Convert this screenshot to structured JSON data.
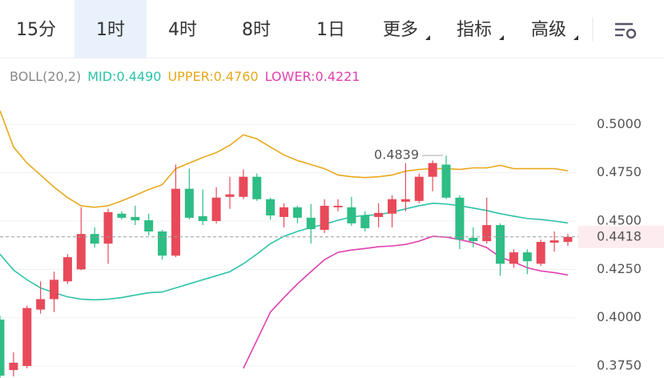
{
  "ui": {
    "tabs": [
      {
        "text": "15分",
        "selected": false
      },
      {
        "text": "1时",
        "selected": true
      },
      {
        "text": "4时",
        "selected": false
      },
      {
        "text": "8时",
        "selected": false
      },
      {
        "text": "1日",
        "selected": false
      },
      {
        "text": "更多",
        "selected": false
      },
      {
        "text": "指标",
        "selected": false
      },
      {
        "text": "高级",
        "selected": false
      }
    ]
  },
  "chart_data": {
    "type": "candlestick",
    "indicator": "BOLL(20,2)",
    "up_color": "#e84a5a",
    "down_color": "#2ebd85",
    "open": [
      0.399,
      0.3729,
      0.375,
      0.4042,
      0.4096,
      0.4188,
      0.425,
      0.4433,
      0.4383,
      0.4538,
      0.4521,
      0.4504,
      0.4446,
      0.4321,
      0.4667,
      0.4525,
      0.45,
      0.4625,
      0.4625,
      0.4729,
      0.4613,
      0.4521,
      0.4571,
      0.4517,
      0.4454,
      0.4571,
      0.4571,
      0.4529,
      0.4521,
      0.4538,
      0.46,
      0.4604,
      0.4729,
      0.4792,
      0.4621,
      0.4413,
      0.4396,
      0.4479,
      0.4279,
      0.4338,
      0.4279,
      0.4388,
      0.4392
    ],
    "high": [
      0.401,
      0.3821,
      0.4062,
      0.4188,
      0.4238,
      0.4329,
      0.4571,
      0.4467,
      0.4563,
      0.455,
      0.4579,
      0.4538,
      0.4454,
      0.4792,
      0.4771,
      0.4663,
      0.4675,
      0.4729,
      0.4767,
      0.4746,
      0.4621,
      0.4592,
      0.4579,
      0.4588,
      0.4613,
      0.4613,
      0.4625,
      0.455,
      0.4592,
      0.4633,
      0.48,
      0.4746,
      0.4813,
      0.4839,
      0.4633,
      0.4467,
      0.4621,
      0.4488,
      0.4354,
      0.4354,
      0.4404,
      0.4446,
      0.4433
    ],
    "low": [
      0.368,
      0.3696,
      0.3738,
      0.4021,
      0.4029,
      0.4175,
      0.4246,
      0.4363,
      0.4279,
      0.4508,
      0.4479,
      0.4425,
      0.43,
      0.4313,
      0.4508,
      0.4479,
      0.4488,
      0.4563,
      0.4613,
      0.4604,
      0.4508,
      0.4467,
      0.4488,
      0.4383,
      0.4438,
      0.455,
      0.4475,
      0.4446,
      0.4467,
      0.4467,
      0.455,
      0.4592,
      0.4654,
      0.4613,
      0.4354,
      0.4363,
      0.4383,
      0.4217,
      0.4258,
      0.4225,
      0.4267,
      0.4342,
      0.4371
    ],
    "close": [
      0.37,
      0.3767,
      0.405,
      0.4096,
      0.4196,
      0.4313,
      0.4433,
      0.4383,
      0.4546,
      0.4517,
      0.4504,
      0.4446,
      0.4321,
      0.4667,
      0.4517,
      0.45,
      0.4621,
      0.4638,
      0.4729,
      0.4613,
      0.4529,
      0.4571,
      0.4517,
      0.4458,
      0.4579,
      0.4579,
      0.4488,
      0.4463,
      0.4542,
      0.4613,
      0.4613,
      0.4729,
      0.48,
      0.4621,
      0.4404,
      0.4396,
      0.4479,
      0.4279,
      0.4338,
      0.4292,
      0.4392,
      0.44,
      0.4418
    ],
    "bands": [
      {
        "legend": "MID:0.4490",
        "color": "#2cc3a8",
        "values": [
          0.4329,
          0.4246,
          0.4196,
          0.4154,
          0.4129,
          0.4108,
          0.4096,
          0.4092,
          0.4096,
          0.4104,
          0.4117,
          0.4129,
          0.4133,
          0.4154,
          0.4175,
          0.4196,
          0.4217,
          0.4238,
          0.4279,
          0.4329,
          0.4383,
          0.4421,
          0.4446,
          0.4467,
          0.4483,
          0.4504,
          0.4521,
          0.4529,
          0.4533,
          0.4546,
          0.4563,
          0.4579,
          0.4592,
          0.4588,
          0.4579,
          0.4567,
          0.4554,
          0.4538,
          0.4525,
          0.4513,
          0.4508,
          0.45,
          0.449
        ]
      },
      {
        "legend": "UPPER:0.4760",
        "color": "#e8a91c",
        "values": [
          0.5071,
          0.4883,
          0.48,
          0.4738,
          0.4675,
          0.4621,
          0.4579,
          0.4571,
          0.4579,
          0.4604,
          0.4633,
          0.4663,
          0.4688,
          0.4771,
          0.48,
          0.4829,
          0.4854,
          0.4892,
          0.4946,
          0.4925,
          0.4883,
          0.4842,
          0.4813,
          0.4792,
          0.4771,
          0.4738,
          0.4729,
          0.4725,
          0.4729,
          0.4738,
          0.4758,
          0.4767,
          0.4771,
          0.4771,
          0.4767,
          0.4775,
          0.4775,
          0.4788,
          0.4771,
          0.4771,
          0.4771,
          0.4771,
          0.476
        ]
      },
      {
        "legend": "LOWER:0.4221",
        "color": "#e040b0",
        "values": [
          null,
          null,
          null,
          null,
          null,
          null,
          null,
          null,
          null,
          null,
          null,
          null,
          null,
          null,
          null,
          null,
          null,
          null,
          0.3738,
          0.3883,
          0.4029,
          0.4104,
          0.4175,
          0.4238,
          0.43,
          0.4338,
          0.435,
          0.4358,
          0.4367,
          0.4371,
          0.4379,
          0.4396,
          0.4421,
          0.4417,
          0.4404,
          0.4388,
          0.4363,
          0.4313,
          0.4288,
          0.4258,
          0.4242,
          0.4233,
          0.4221
        ]
      }
    ],
    "last_price": 0.4418,
    "max_annotation": 0.4839,
    "ylim": [
      0.3688,
      0.5196
    ],
    "yticks": [
      {
        "value": 0.5,
        "label": "0.5000"
      },
      {
        "value": 0.475,
        "label": "0.4750"
      },
      {
        "value": 0.45,
        "label": "0.4500"
      },
      {
        "value": 0.425,
        "label": "0.4250"
      },
      {
        "value": 0.4,
        "label": "0.4000"
      },
      {
        "value": 0.375,
        "label": "0.3750"
      }
    ],
    "grid": true
  }
}
